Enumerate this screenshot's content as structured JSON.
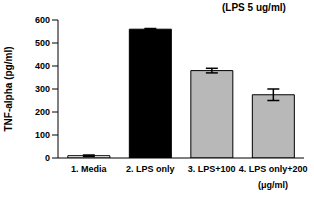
{
  "chart_data": {
    "type": "bar",
    "categories": [
      "1. Media",
      "2. LPS only",
      "3. LPS+100",
      "4. LPS only+200"
    ],
    "values": [
      10,
      560,
      380,
      275
    ],
    "errors": [
      3,
      3,
      10,
      25
    ],
    "colors": [
      "#ffffff",
      "#000000",
      "#b8b8b8",
      "#b8b8b8"
    ],
    "y_label": "TNF-alpha (pg/ml)",
    "ylim": [
      0,
      600
    ],
    "yticks": [
      0,
      100,
      200,
      300,
      400,
      500,
      600
    ],
    "annotations": [
      "(LPS 5 ug/ml)",
      "(μg/ml)"
    ],
    "grid": false
  }
}
